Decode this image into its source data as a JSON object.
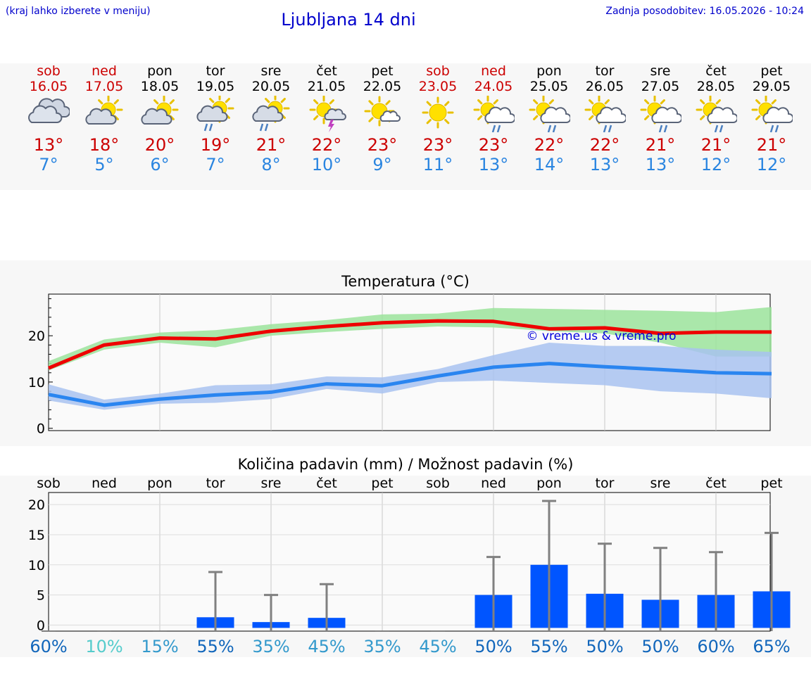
{
  "header": {
    "hint": "(kraj lahko izberete v meniju)",
    "title": "Ljubljana 14 dni",
    "updated": "Zadnja posodobitev: 16.05.2026 - 10:24"
  },
  "days": [
    {
      "name": "sob",
      "date": "16.05",
      "max": "13°",
      "min": "7°",
      "icon": "cloudy-icon",
      "weekend": true
    },
    {
      "name": "ned",
      "date": "17.05",
      "max": "18°",
      "min": "5°",
      "icon": "partly-cloudy-icon",
      "weekend": true
    },
    {
      "name": "pon",
      "date": "18.05",
      "max": "20°",
      "min": "6°",
      "icon": "partly-cloudy-icon",
      "weekend": false
    },
    {
      "name": "tor",
      "date": "19.05",
      "max": "19°",
      "min": "7°",
      "icon": "sun-cloud-rain-icon",
      "weekend": false
    },
    {
      "name": "sre",
      "date": "20.05",
      "max": "21°",
      "min": "8°",
      "icon": "sun-cloud-rain-icon",
      "weekend": false
    },
    {
      "name": "čet",
      "date": "21.05",
      "max": "22°",
      "min": "10°",
      "icon": "sun-thunder-icon",
      "weekend": false
    },
    {
      "name": "pet",
      "date": "22.05",
      "max": "23°",
      "min": "9°",
      "icon": "sun-small-cloud-icon",
      "weekend": false
    },
    {
      "name": "sob",
      "date": "23.05",
      "max": "23°",
      "min": "11°",
      "icon": "sunny-icon",
      "weekend": true
    },
    {
      "name": "ned",
      "date": "24.05",
      "max": "23°",
      "min": "13°",
      "icon": "sun-rain-icon",
      "weekend": true
    },
    {
      "name": "pon",
      "date": "25.05",
      "max": "22°",
      "min": "14°",
      "icon": "sun-rain-icon",
      "weekend": false
    },
    {
      "name": "tor",
      "date": "26.05",
      "max": "22°",
      "min": "13°",
      "icon": "sun-rain-icon",
      "weekend": false
    },
    {
      "name": "sre",
      "date": "27.05",
      "max": "21°",
      "min": "13°",
      "icon": "sun-rain-icon",
      "weekend": false
    },
    {
      "name": "čet",
      "date": "28.05",
      "max": "21°",
      "min": "12°",
      "icon": "sun-rain-icon",
      "weekend": false
    },
    {
      "name": "pet",
      "date": "29.05",
      "max": "21°",
      "min": "12°",
      "icon": "sun-rain-icon",
      "weekend": false
    }
  ],
  "colors": {
    "max_line": "#ee0000",
    "max_band": "#9be39b",
    "min_line": "#2a85f0",
    "min_band": "#a8c2f0",
    "bar": "#0055ff",
    "errorbar": "#808080",
    "prob_levels": {
      "10%": "#55cccc",
      "15%": "#3399cc",
      "35%": "#3399cc",
      "45%": "#3399cc",
      "50%": "#1166bb",
      "55%": "#1166bb",
      "60%": "#1166bb",
      "65%": "#1166bb"
    }
  },
  "chart_data": [
    {
      "type": "line",
      "title": "Temperatura (°C)",
      "watermark": "© vreme.us & vreme.pro",
      "categories": [
        "16.05",
        "17.05",
        "18.05",
        "19.05",
        "20.05",
        "21.05",
        "22.05",
        "23.05",
        "24.05",
        "25.05",
        "26.05",
        "27.05",
        "28.05",
        "29.05"
      ],
      "ylim": [
        -0.5,
        29
      ],
      "yticks": [
        0,
        10,
        20
      ],
      "grid": true,
      "series": [
        {
          "values": [
            13,
            18,
            19.5,
            19.3,
            21,
            22,
            22.8,
            23.2,
            23.1,
            21.5,
            21.7,
            20.5,
            20.8,
            20.8
          ],
          "range_low": [
            12.5,
            17,
            18.5,
            17.5,
            20,
            20.8,
            21.5,
            22,
            21.8,
            21,
            20.5,
            18.5,
            15.5,
            15.5
          ],
          "range_high": [
            14.5,
            19.2,
            20.7,
            21.2,
            22.5,
            23.4,
            24.6,
            24.8,
            26,
            25.8,
            25.6,
            25.4,
            25.1,
            26.2
          ]
        },
        {
          "values": [
            7.3,
            5,
            6.3,
            7.2,
            7.8,
            9.6,
            9.2,
            11.3,
            13.2,
            14,
            13.3,
            12.7,
            12,
            11.8
          ],
          "range_low": [
            6,
            4,
            5.3,
            5.5,
            6.3,
            8.5,
            7.5,
            10,
            10.3,
            9.8,
            9.3,
            8,
            7.5,
            6.5
          ],
          "range_high": [
            9.5,
            6.2,
            7.5,
            9.3,
            9.5,
            11.2,
            11,
            12.8,
            15.8,
            18.5,
            17.8,
            17.8,
            17,
            16.5
          ],
          "overlap_high": [
            9.5,
            6.2,
            7.5,
            9.3,
            9.5,
            11.2,
            11,
            12.8,
            15.8,
            18.5,
            17.8,
            16,
            16.5,
            17.5
          ]
        }
      ]
    },
    {
      "type": "bar",
      "title": "Količina padavin (mm) / Možnost padavin (%)",
      "categories": [
        "sob",
        "ned",
        "pon",
        "tor",
        "sre",
        "čet",
        "pet",
        "sob",
        "ned",
        "pon",
        "tor",
        "sre",
        "čet",
        "pet"
      ],
      "ylim": [
        -1,
        22
      ],
      "yticks": [
        0,
        5,
        10,
        15,
        20
      ],
      "values": [
        0,
        0,
        0,
        1.3,
        0.5,
        1.2,
        0,
        0,
        5,
        10,
        5.2,
        4.2,
        5,
        5.6
      ],
      "error_high": [
        0,
        0,
        0,
        8.8,
        5,
        6.8,
        0,
        0,
        11.3,
        20.6,
        13.5,
        12.8,
        12.1,
        15.3
      ],
      "probability": [
        "60%",
        "10%",
        "15%",
        "55%",
        "35%",
        "45%",
        "35%",
        "45%",
        "50%",
        "55%",
        "50%",
        "50%",
        "60%",
        "65%"
      ]
    }
  ]
}
